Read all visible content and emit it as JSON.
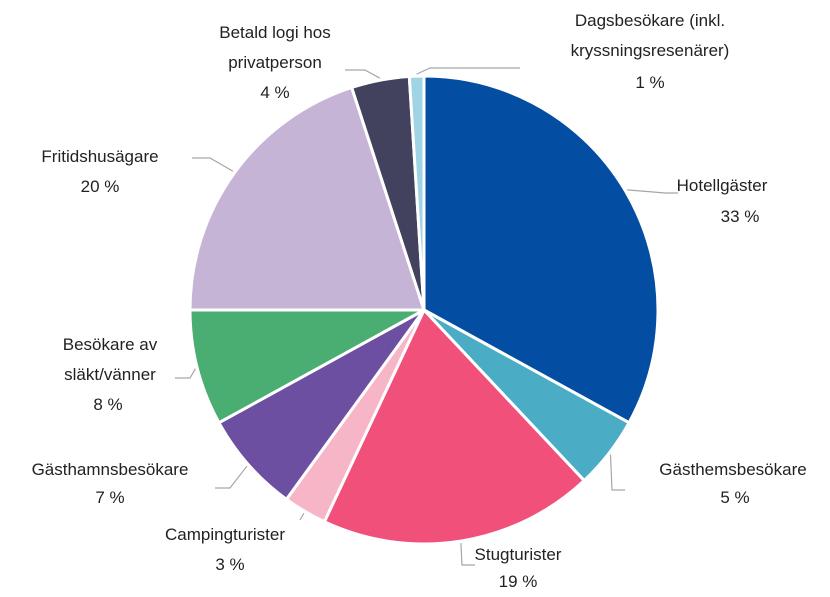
{
  "chart_data": {
    "type": "pie",
    "categories": [
      "Hotellgäster",
      "Gästhemsbesökare",
      "Stugturister",
      "Campingturister",
      "Gästhamnsbesökare",
      "Besökare av släkt/vänner",
      "Fritidshusägare",
      "Betald logi hos privatperson",
      "Dagsbesökare (inkl. kryssningsresenärer)"
    ],
    "values": [
      33,
      5,
      19,
      3,
      7,
      8,
      20,
      4,
      1
    ],
    "value_labels": [
      "33 %",
      "5 %",
      "19 %",
      "3 %",
      "7 %",
      "8 %",
      "20 %",
      "4 %",
      "1 %"
    ],
    "colors": [
      "#034ea2",
      "#4bacc6",
      "#f0507a",
      "#f7b6c8",
      "#6c4fa0",
      "#4aad72",
      "#c5b4d5",
      "#42425e",
      "#9fd3e6"
    ]
  }
}
